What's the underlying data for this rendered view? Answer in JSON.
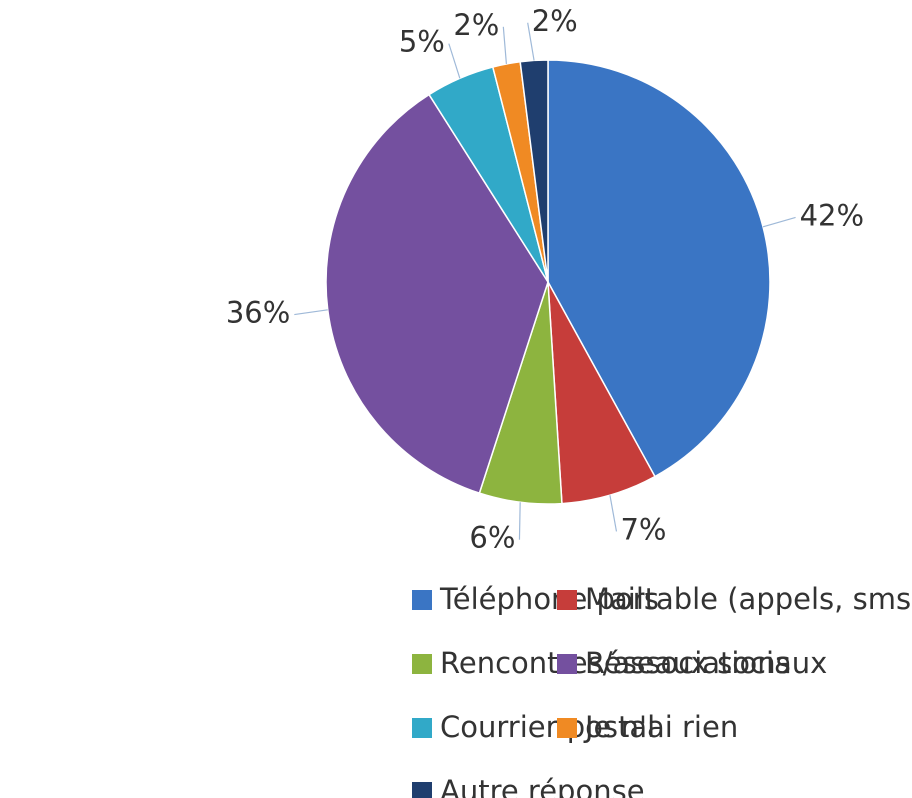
{
  "chart_data": {
    "type": "pie",
    "categories": [
      "Téléphone portable (appels, sms)",
      "Mails",
      "Rencontres/associations",
      "Réseaux sociaux",
      "Courrier postal",
      "Je n'ai rien",
      "Autre réponse"
    ],
    "values": [
      42,
      7,
      6,
      36,
      5,
      2,
      2
    ],
    "value_labels": [
      "42%",
      "7%",
      "6%",
      "36%",
      "5%",
      "2%",
      "2%"
    ],
    "colors": [
      "#3a75c4",
      "#c63d3a",
      "#8db43f",
      "#74509f",
      "#31a9c8",
      "#f08a23",
      "#1f3e6e"
    ],
    "legend": "bottom"
  }
}
